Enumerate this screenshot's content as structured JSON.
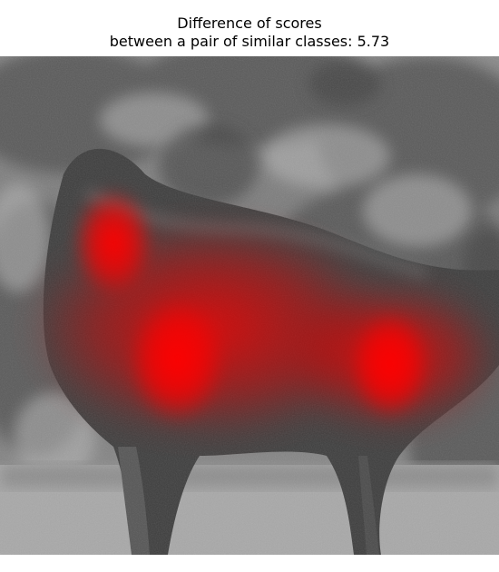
{
  "figure": {
    "title_line1": "Difference of scores",
    "title_line2": "between a pair of similar classes: 5.73"
  },
  "image": {
    "subject": "dog-grayscale-photo",
    "background": "foliage-and-grass",
    "overlay": "red-heatmap"
  },
  "colors": {
    "heatmap": "#ff0000",
    "photo_gray_dark": "#2b2b2b",
    "photo_gray_light": "#bdbdbd"
  }
}
